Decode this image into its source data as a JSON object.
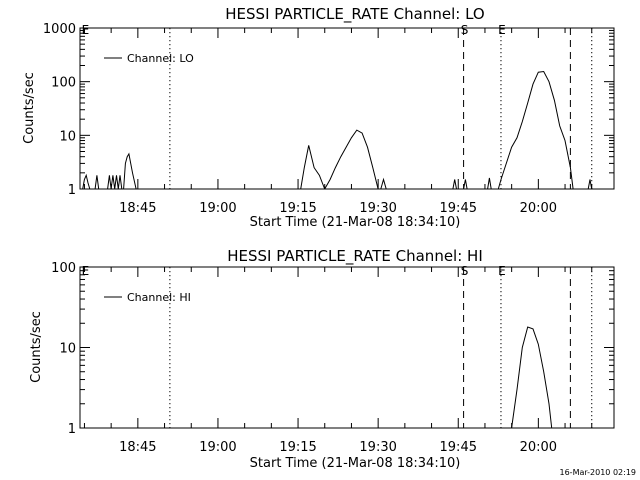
{
  "footer": {
    "timestamp": "16-Mar-2010 02:19"
  },
  "chart_data": [
    {
      "type": "line",
      "title": "HESSI PARTICLE_RATE Channel: LO",
      "xlabel": "Start Time (21-Mar-08 18:34:10)",
      "ylabel": "Counts/sec",
      "yscale": "log",
      "ylim": [
        1,
        1000
      ],
      "xlim_minutes": [
        18.5,
        23.5
      ],
      "xlim_time": [
        "18:34:10",
        "20:14:10"
      ],
      "x_ticks": [
        "18:45",
        "19:00",
        "19:15",
        "19:30",
        "19:45",
        "20:00"
      ],
      "y_ticks": [
        "1",
        "10",
        "100",
        "1000"
      ],
      "legend": {
        "entries": [
          "Channel: LO"
        ],
        "position": "top-left"
      },
      "markers": [
        {
          "label": "E",
          "x_time": "18:35",
          "style": "none"
        },
        {
          "label": "",
          "x_time": "18:51",
          "style": "dotted"
        },
        {
          "label": "S",
          "x_time": "19:46",
          "style": "dashed"
        },
        {
          "label": "E",
          "x_time": "19:53",
          "style": "dotted"
        },
        {
          "label": "",
          "x_time": "20:06",
          "style": "dashed"
        },
        {
          "label": "",
          "x_time": "20:10",
          "style": "dotted"
        }
      ],
      "series": [
        {
          "name": "Channel: LO",
          "segments": [
            {
              "x": [
                "18:34:40",
                "18:35:00",
                "18:35:20",
                "18:35:40",
                "18:36:00"
              ],
              "y": [
                1,
                1.5,
                1.8,
                1.3,
                1
              ]
            },
            {
              "x": [
                "18:37:00",
                "18:37:20",
                "18:37:40"
              ],
              "y": [
                1,
                1.8,
                1
              ]
            },
            {
              "x": [
                "18:39:20",
                "18:39:40",
                "18:40:00"
              ],
              "y": [
                1,
                1.8,
                1
              ]
            },
            {
              "x": [
                "18:40:00",
                "18:40:20",
                "18:40:40",
                "18:41:00",
                "18:41:20",
                "18:41:40",
                "18:42:00"
              ],
              "y": [
                1,
                1.8,
                1,
                1.8,
                1,
                1.8,
                1
              ]
            },
            {
              "x": [
                "18:42:20",
                "18:42:40",
                "18:43:00",
                "18:43:20",
                "18:44:00",
                "18:44:40"
              ],
              "y": [
                1,
                3,
                4,
                4.5,
                2,
                1
              ]
            },
            {
              "x": [
                "19:15:30",
                "19:16:10",
                "19:17:00",
                "19:18:00",
                "19:19:00",
                "19:20:00"
              ],
              "y": [
                1,
                2.5,
                6.5,
                2.5,
                1.8,
                1
              ]
            },
            {
              "x": [
                "19:20:00",
                "19:21:00",
                "19:22:00",
                "19:23:00",
                "19:24:00",
                "19:25:00",
                "19:26:00",
                "19:27:00",
                "19:28:00",
                "19:29:00",
                "19:30:00"
              ],
              "y": [
                1,
                1.5,
                2.5,
                4,
                6,
                9,
                12.5,
                11,
                6,
                2.5,
                1
              ]
            },
            {
              "x": [
                "19:30:30",
                "19:31:00",
                "19:31:30"
              ],
              "y": [
                1,
                1.5,
                1
              ]
            },
            {
              "x": [
                "19:44:00",
                "19:44:20",
                "19:44:40"
              ],
              "y": [
                1,
                1.5,
                1
              ]
            },
            {
              "x": [
                "19:46:00",
                "19:46:20",
                "19:46:40"
              ],
              "y": [
                1,
                1.5,
                1
              ]
            },
            {
              "x": [
                "19:50:30",
                "19:50:50",
                "19:51:10"
              ],
              "y": [
                1,
                1.6,
                1
              ]
            },
            {
              "x": [
                "19:52:30",
                "19:53:00",
                "19:54:00",
                "19:55:00",
                "19:56:00",
                "19:57:00",
                "19:58:00",
                "19:59:00",
                "20:00:00",
                "20:01:00",
                "20:02:00",
                "20:03:00",
                "20:04:00",
                "20:05:00",
                "20:06:00",
                "20:06:30"
              ],
              "y": [
                1,
                1.5,
                3,
                6,
                9,
                18,
                40,
                90,
                150,
                155,
                100,
                45,
                15,
                8,
                2.5,
                1
              ]
            },
            {
              "x": [
                "20:09:20",
                "20:09:40",
                "20:10:00"
              ],
              "y": [
                1,
                1.5,
                1
              ]
            }
          ]
        }
      ]
    },
    {
      "type": "line",
      "title": "HESSI PARTICLE_RATE Channel: HI",
      "xlabel": "Start Time (21-Mar-08 18:34:10)",
      "ylabel": "Counts/sec",
      "yscale": "log",
      "ylim": [
        1,
        100
      ],
      "xlim_minutes": [
        18.5,
        23.5
      ],
      "xlim_time": [
        "18:34:10",
        "20:14:10"
      ],
      "x_ticks": [
        "18:45",
        "19:00",
        "19:15",
        "19:30",
        "19:45",
        "20:00"
      ],
      "y_ticks": [
        "1",
        "10",
        "100"
      ],
      "legend": {
        "entries": [
          "Channel: HI"
        ],
        "position": "top-left"
      },
      "markers": [
        {
          "label": "E",
          "x_time": "18:35",
          "style": "none"
        },
        {
          "label": "",
          "x_time": "18:51",
          "style": "dotted"
        },
        {
          "label": "S",
          "x_time": "19:46",
          "style": "dashed"
        },
        {
          "label": "E",
          "x_time": "19:53",
          "style": "dotted"
        },
        {
          "label": "",
          "x_time": "20:06",
          "style": "dashed"
        },
        {
          "label": "",
          "x_time": "20:10",
          "style": "dotted"
        }
      ],
      "series": [
        {
          "name": "Channel: HI",
          "segments": [
            {
              "x": [
                "19:55:00",
                "19:56:00",
                "19:57:00",
                "19:58:00",
                "19:59:00",
                "20:00:00",
                "20:01:00",
                "20:02:00",
                "20:02:30"
              ],
              "y": [
                1,
                3,
                10,
                18,
                17,
                11,
                5,
                2,
                1
              ]
            }
          ]
        }
      ]
    }
  ]
}
